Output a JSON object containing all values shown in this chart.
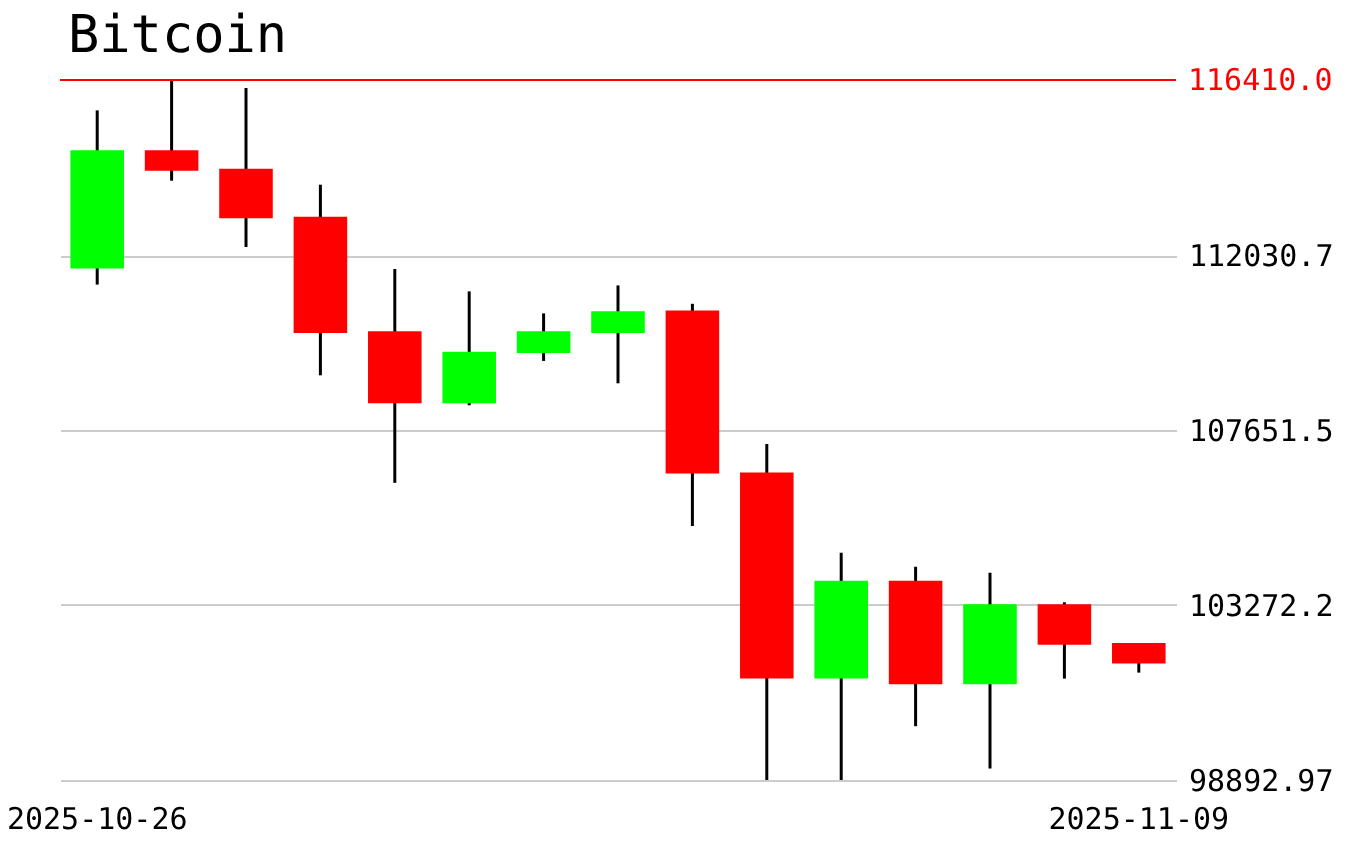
{
  "chart_data": {
    "type": "candlestick",
    "title": "Bitcoin",
    "categories": [
      "2025-10-26",
      null,
      null,
      null,
      null,
      null,
      null,
      null,
      null,
      null,
      null,
      null,
      null,
      null,
      "2025-11-09"
    ],
    "ohlc": [
      [
        111690,
        115650,
        111290,
        114650
      ],
      [
        114650,
        116410,
        113890,
        114140
      ],
      [
        114190,
        116210,
        112230,
        112950
      ],
      [
        112990,
        113790,
        109020,
        110080
      ],
      [
        110120,
        111680,
        106330,
        108320
      ],
      [
        108320,
        111120,
        108270,
        109610
      ],
      [
        109580,
        110570,
        109380,
        110120
      ],
      [
        110080,
        111270,
        108820,
        110620
      ],
      [
        110640,
        110810,
        105250,
        106560
      ],
      [
        106590,
        107300,
        98893,
        101430
      ],
      [
        101430,
        104580,
        98893,
        103880
      ],
      [
        103880,
        104230,
        100240,
        101290
      ],
      [
        101290,
        104080,
        99180,
        103290
      ],
      [
        103290,
        103340,
        101430,
        102280
      ],
      [
        102320,
        102320,
        101580,
        101810
      ]
    ],
    "colors": [
      "#00ff00",
      "#ff0000",
      "#ff0000",
      "#ff0000",
      "#ff0000",
      "#00ff00",
      "#00ff00",
      "#00ff00",
      "#ff0000",
      "#ff0000",
      "#00ff00",
      "#ff0000",
      "#00ff00",
      "#ff0000",
      "#ff0000"
    ],
    "ylim": [
      98892.97,
      116410
    ],
    "yticks": [
      {
        "value": 98892.97,
        "label": "98892.97"
      },
      {
        "value": 103272.23,
        "label": "103272.2"
      },
      {
        "value": 107651.49,
        "label": "107651.5"
      },
      {
        "value": 112030.74,
        "label": "112030.7"
      }
    ],
    "ref_lines": [
      {
        "axis": "y",
        "value": 116410,
        "label": "116410.0",
        "color": "#ff0000"
      }
    ],
    "grid": "y"
  }
}
